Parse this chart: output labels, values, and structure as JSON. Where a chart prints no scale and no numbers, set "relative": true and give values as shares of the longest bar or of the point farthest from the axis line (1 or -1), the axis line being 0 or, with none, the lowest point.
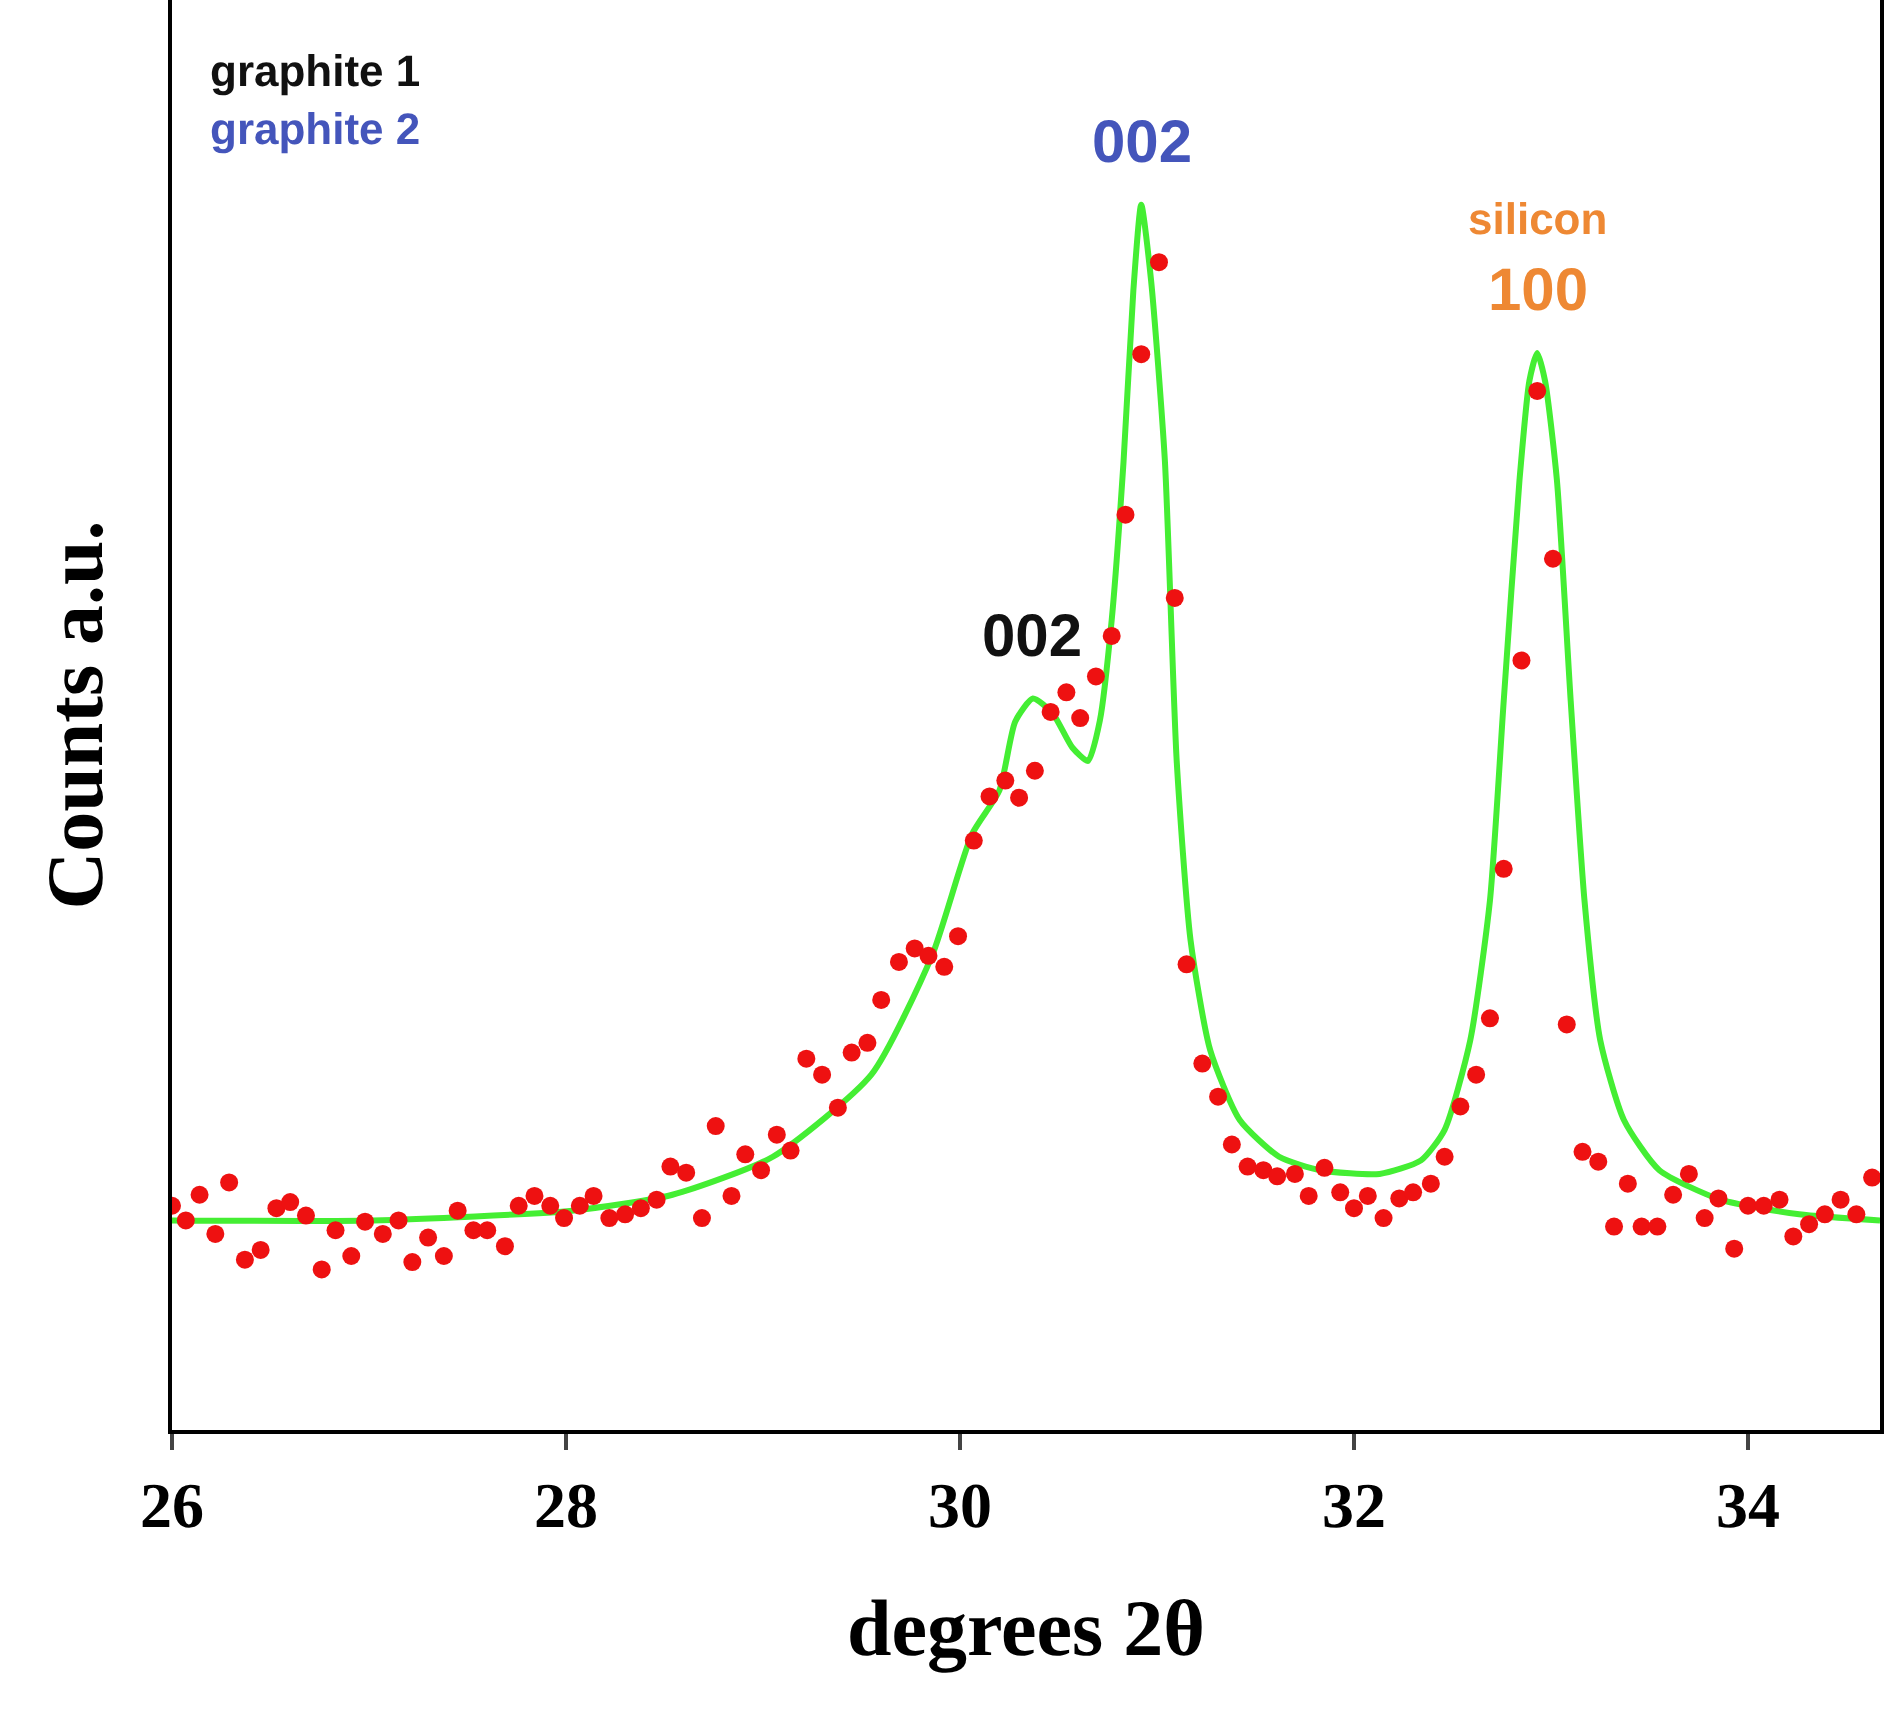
{
  "chart_data": {
    "type": "scatter",
    "xlabel": "degrees 2θ",
    "ylabel": "Counts a.u.",
    "relative": true,
    "xlim": [
      26,
      34.67
    ],
    "xticks": [
      26,
      28,
      30,
      32,
      34
    ],
    "grid": false,
    "marker": "circle",
    "series": [
      {
        "color": "#ee1111",
        "x": [
          26.0,
          26.07,
          26.14,
          26.22,
          26.29,
          26.37,
          26.45,
          26.53,
          26.6,
          26.68,
          26.76,
          26.83,
          26.91,
          26.98,
          27.07,
          27.15,
          27.22,
          27.3,
          27.38,
          27.45,
          27.53,
          27.6,
          27.69,
          27.76,
          27.84,
          27.92,
          27.99,
          28.07,
          28.14,
          28.22,
          28.3,
          28.38,
          28.46,
          28.53,
          28.61,
          28.69,
          28.76,
          28.84,
          28.91,
          28.99,
          29.07,
          29.14,
          29.22,
          29.3,
          29.38,
          29.45,
          29.53,
          29.6,
          29.69,
          29.77,
          29.84,
          29.92,
          29.99,
          30.07,
          30.15,
          30.23,
          30.3,
          30.38,
          30.46,
          30.54,
          30.61,
          30.69,
          30.77,
          30.84,
          30.92,
          31.01,
          31.09,
          31.15,
          31.23,
          31.31,
          31.38,
          31.46,
          31.54,
          31.61,
          31.7,
          31.77,
          31.85,
          31.93,
          32.0,
          32.07,
          32.15,
          32.23,
          32.3,
          32.39,
          32.46,
          32.54,
          32.62,
          32.69,
          32.76,
          32.85,
          32.93,
          33.01,
          33.08,
          33.16,
          33.24,
          33.32,
          33.39,
          33.46,
          33.54,
          33.62,
          33.7,
          33.78,
          33.85,
          33.93,
          34.0,
          34.08,
          34.16,
          34.23,
          34.31,
          34.39,
          34.47,
          34.55,
          34.63
        ],
        "values": [
          0.183,
          0.171,
          0.192,
          0.16,
          0.202,
          0.139,
          0.147,
          0.181,
          0.186,
          0.175,
          0.131,
          0.163,
          0.142,
          0.17,
          0.16,
          0.171,
          0.137,
          0.157,
          0.142,
          0.179,
          0.163,
          0.163,
          0.15,
          0.183,
          0.191,
          0.183,
          0.173,
          0.183,
          0.191,
          0.173,
          0.176,
          0.181,
          0.188,
          0.215,
          0.21,
          0.173,
          0.248,
          0.191,
          0.225,
          0.212,
          0.241,
          0.228,
          0.303,
          0.29,
          0.263,
          0.308,
          0.316,
          0.351,
          0.382,
          0.393,
          0.387,
          0.378,
          0.403,
          0.481,
          0.517,
          0.53,
          0.516,
          0.538,
          0.586,
          0.602,
          0.581,
          0.615,
          0.648,
          0.747,
          0.878,
          0.953,
          0.679,
          0.38,
          0.299,
          0.272,
          0.233,
          0.215,
          0.212,
          0.207,
          0.209,
          0.191,
          0.214,
          0.194,
          0.181,
          0.191,
          0.173,
          0.189,
          0.194,
          0.201,
          0.223,
          0.264,
          0.29,
          0.336,
          0.458,
          0.628,
          0.848,
          0.711,
          0.331,
          0.227,
          0.219,
          0.166,
          0.201,
          0.166,
          0.166,
          0.192,
          0.209,
          0.173,
          0.189,
          0.148,
          0.183,
          0.183,
          0.188,
          0.158,
          0.168,
          0.176,
          0.188,
          0.176,
          0.206
        ]
      },
      {
        "type": "line",
        "color": "#44ee33",
        "marker": "none",
        "line_style": "solid",
        "x": [
          26.0,
          27.02,
          28.03,
          28.54,
          29.05,
          29.55,
          29.86,
          30.06,
          30.2,
          30.28,
          30.37,
          30.47,
          30.57,
          30.65,
          30.71,
          30.77,
          30.83,
          30.88,
          30.92,
          30.97,
          31.04,
          31.1,
          31.17,
          31.27,
          31.42,
          31.62,
          31.83,
          32.13,
          32.34,
          32.46,
          32.59,
          32.69,
          32.76,
          32.84,
          32.89,
          32.93,
          32.97,
          33.03,
          33.1,
          33.17,
          33.25,
          33.37,
          33.55,
          33.86,
          34.26,
          34.67
        ],
        "values": [
          0.171,
          0.171,
          0.179,
          0.192,
          0.223,
          0.29,
          0.388,
          0.486,
          0.522,
          0.578,
          0.597,
          0.585,
          0.557,
          0.546,
          0.579,
          0.661,
          0.79,
          0.93,
          1,
          0.938,
          0.791,
          0.546,
          0.4,
          0.31,
          0.253,
          0.223,
          0.212,
          0.209,
          0.22,
          0.245,
          0.318,
          0.432,
          0.595,
          0.775,
          0.856,
          0.879,
          0.856,
          0.775,
          0.595,
          0.432,
          0.318,
          0.253,
          0.212,
          0.188,
          0.176,
          0.171
        ]
      }
    ],
    "annotations": [
      "graphite 1",
      "graphite 2",
      {
        "text": "002",
        "x": 30.37,
        "y": 0.597
      },
      {
        "text": "002",
        "x": 30.92,
        "y": 1
      },
      {
        "text": "100",
        "x": 32.93,
        "y": 0.879
      },
      {
        "text": "silicon",
        "x": 32.93,
        "y": 0.879
      }
    ]
  }
}
